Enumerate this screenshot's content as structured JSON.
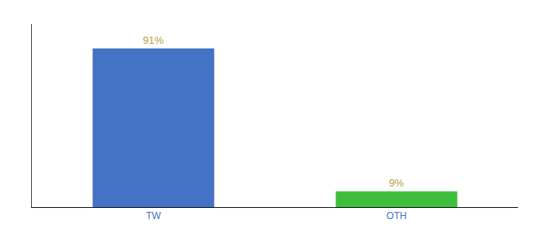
{
  "chart_data": {
    "type": "bar",
    "categories": [
      "TW",
      "OTH"
    ],
    "values": [
      91,
      9
    ],
    "value_labels": [
      "91%",
      "9%"
    ],
    "colors": [
      "#4472c4",
      "#3dbf3d"
    ],
    "ylim": [
      0,
      105
    ],
    "grid": false,
    "data_labels": true,
    "tick_labels": "x"
  }
}
